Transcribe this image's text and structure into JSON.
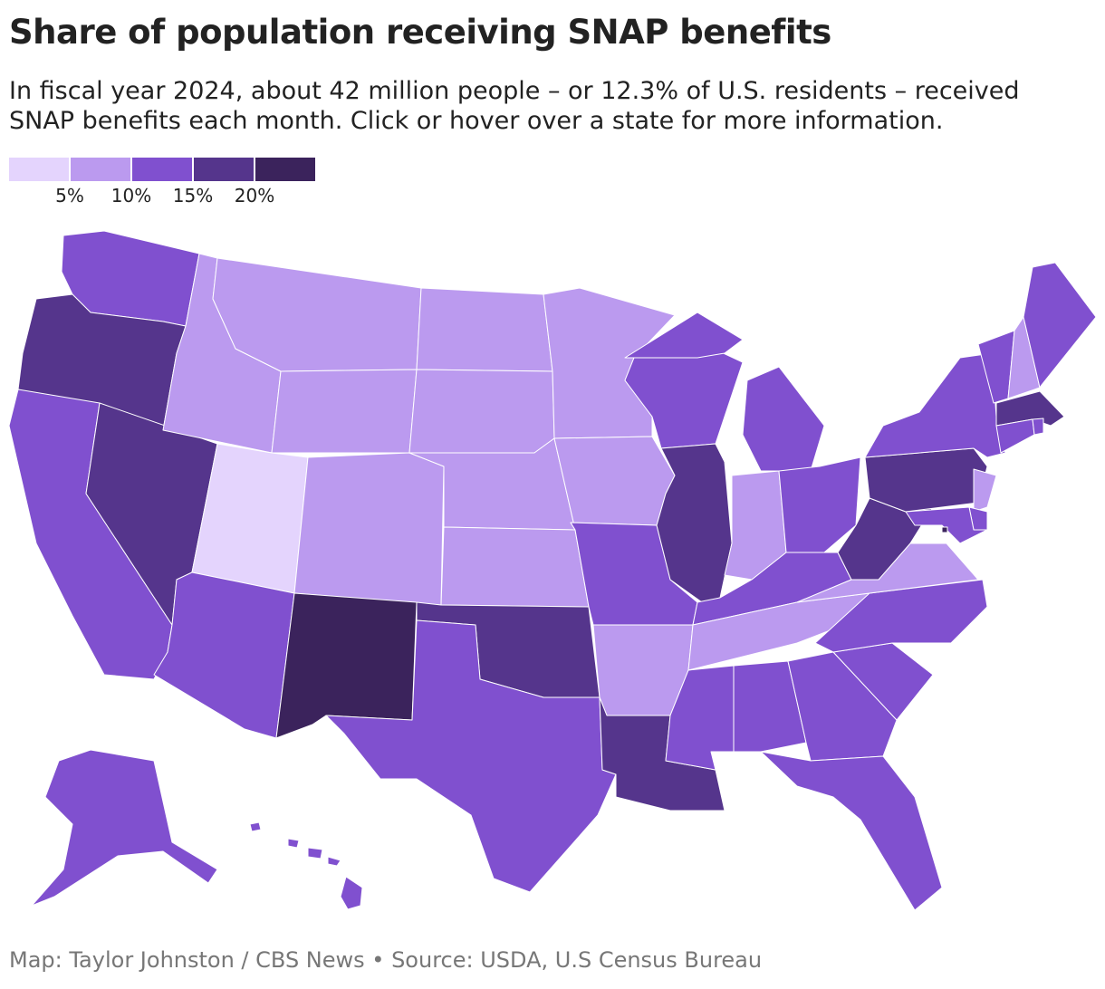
{
  "title": "Share of population receiving SNAP benefits",
  "subtitle": "In fiscal year 2024, about 42 million people – or 12.3% of U.S. residents – received SNAP benefits each month. Click or hover over a state for more information.",
  "legend": {
    "colors": [
      "#e4d4fd",
      "#bb9aef",
      "#8050cf",
      "#55358c",
      "#3b235c"
    ],
    "bins": [
      "<5%",
      "5–10%",
      "10–15%",
      "15–20%",
      ">20%"
    ],
    "tick_labels": [
      "5%",
      "10%",
      "15%",
      "20%"
    ]
  },
  "states": {
    "WA": "10–15%",
    "OR": "15–20%",
    "CA": "10–15%",
    "NV": "15–20%",
    "ID": "5–10%",
    "MT": "5–10%",
    "WY": "5–10%",
    "UT": "<5%",
    "CO": "5–10%",
    "AZ": "10–15%",
    "NM": ">20%",
    "ND": "5–10%",
    "SD": "5–10%",
    "NE": "5–10%",
    "KS": "5–10%",
    "OK": "15–20%",
    "TX": "10–15%",
    "MN": "5–10%",
    "IA": "5–10%",
    "MO": "10–15%",
    "AR": "5–10%",
    "LA": "15–20%",
    "WI": "10–15%",
    "IL": "15–20%",
    "MI": "10–15%",
    "IN": "5–10%",
    "OH": "10–15%",
    "KY": "10–15%",
    "TN": "5–10%",
    "MS": "10–15%",
    "AL": "10–15%",
    "GA": "10–15%",
    "FL": "10–15%",
    "SC": "10–15%",
    "NC": "10–15%",
    "VA": "5–10%",
    "WV": "15–20%",
    "PA": "15–20%",
    "NY": "10–15%",
    "VT": "10–15%",
    "NH": "5–10%",
    "ME": "10–15%",
    "MA": "15–20%",
    "CT": "10–15%",
    "RI": "10–15%",
    "NJ": "5–10%",
    "DE": "10–15%",
    "MD": "10–15%",
    "DC": ">20%",
    "AK": "10–15%",
    "HI": "10–15%"
  },
  "credit": "Map: Taylor Johnston / CBS News • Source: USDA, U.S Census Bureau"
}
